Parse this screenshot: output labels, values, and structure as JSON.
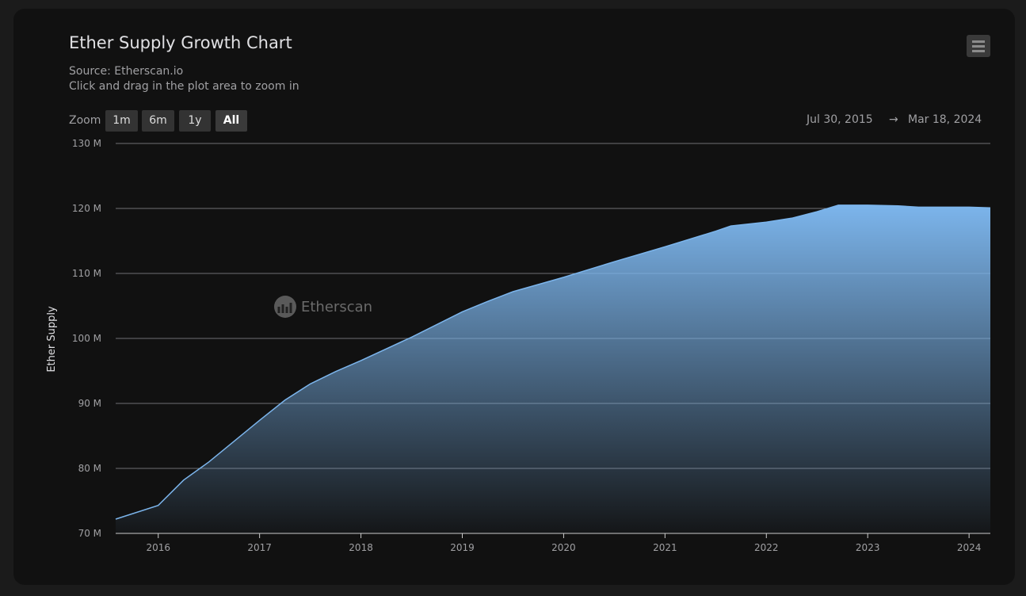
{
  "header": {
    "title": "Ether Supply Growth Chart",
    "source": "Source: Etherscan.io",
    "hint": "Click and drag in the plot area to zoom in",
    "menu_icon": "hamburger-menu-icon"
  },
  "zoom": {
    "label": "Zoom",
    "buttons": [
      "1m",
      "6m",
      "1y",
      "All"
    ],
    "active": "All"
  },
  "range": {
    "from": "Jul 30, 2015",
    "arrow": "→",
    "to": "Mar 18, 2024"
  },
  "watermark": "Etherscan",
  "colors": {
    "series": "#7cb5ec",
    "background": "#111111",
    "grid": "#707073"
  },
  "chart_data": {
    "type": "area",
    "title": "Ether Supply Growth Chart",
    "ylabel": "Ether Supply",
    "xlabel": "",
    "ylim": [
      70,
      130
    ],
    "xlim": [
      "2015-07-30",
      "2024-03-18"
    ],
    "y_ticks": [
      "70 M",
      "80 M",
      "90 M",
      "100 M",
      "110 M",
      "120 M",
      "130 M"
    ],
    "y_tick_values": [
      70,
      80,
      90,
      100,
      110,
      120,
      130
    ],
    "x_ticks": [
      "2016",
      "2017",
      "2018",
      "2019",
      "2020",
      "2021",
      "2022",
      "2023",
      "2024"
    ],
    "grid": true,
    "legend": "none",
    "unit": "M ETH",
    "x": [
      2015.58,
      2016.0,
      2016.25,
      2016.5,
      2017.0,
      2017.25,
      2017.5,
      2017.75,
      2018.0,
      2018.5,
      2019.0,
      2019.25,
      2019.5,
      2020.0,
      2020.5,
      2021.0,
      2021.5,
      2021.65,
      2022.0,
      2022.25,
      2022.5,
      2022.71,
      2023.0,
      2023.3,
      2023.5,
      2024.0,
      2024.21
    ],
    "values": [
      72.2,
      74.3,
      78.2,
      81.0,
      87.4,
      90.5,
      93.0,
      94.9,
      96.6,
      100.2,
      104.1,
      105.7,
      107.2,
      109.4,
      111.8,
      114.1,
      116.5,
      117.3,
      117.9,
      118.5,
      119.5,
      120.5,
      120.5,
      120.4,
      120.2,
      120.2,
      120.1
    ]
  }
}
